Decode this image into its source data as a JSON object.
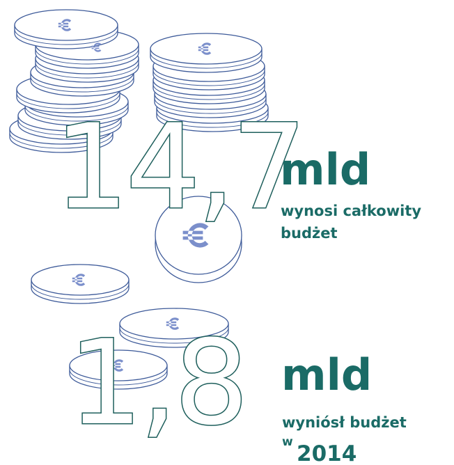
{
  "first": {
    "number": "14,7",
    "unit": "mld",
    "caption_line1": "wynosi całkowity",
    "caption_line2": "budżet"
  },
  "second": {
    "number": "1,8",
    "unit": "mld",
    "caption_line1": "wyniósł budżet",
    "caption_prefix": "w",
    "caption_year": "2014"
  }
}
